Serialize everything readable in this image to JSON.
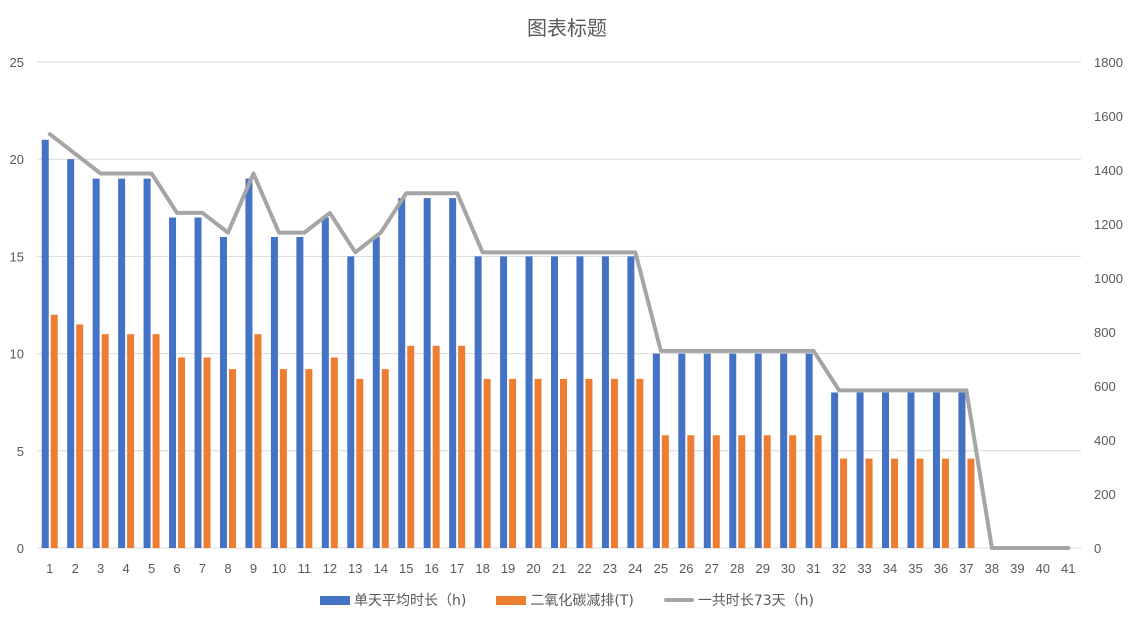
{
  "chart_data": {
    "type": "bar+line",
    "title": "图表标题",
    "categories": [
      1,
      2,
      3,
      4,
      5,
      6,
      7,
      8,
      9,
      10,
      11,
      12,
      13,
      14,
      15,
      16,
      17,
      18,
      19,
      20,
      21,
      22,
      23,
      24,
      25,
      26,
      27,
      28,
      29,
      30,
      31,
      32,
      33,
      34,
      35,
      36,
      37,
      38,
      39,
      40,
      41
    ],
    "series": [
      {
        "name": "单天平均时长（h)",
        "type": "bar",
        "axis": "left",
        "color": "#4472C4",
        "values": [
          21,
          20,
          19,
          19,
          19,
          17,
          17,
          16,
          19,
          16,
          16,
          17,
          15,
          16,
          18,
          18,
          18,
          15,
          15,
          15,
          15,
          15,
          15,
          15,
          10,
          10,
          10,
          10,
          10,
          10,
          10,
          8,
          8,
          8,
          8,
          8,
          8,
          0,
          0,
          0,
          0
        ]
      },
      {
        "name": "二氧化碳减排(T)",
        "type": "bar",
        "axis": "left",
        "color": "#ED7D31",
        "values": [
          12.0,
          11.5,
          11.0,
          11.0,
          11.0,
          9.8,
          9.8,
          9.2,
          11.0,
          9.2,
          9.2,
          9.8,
          8.7,
          9.2,
          10.4,
          10.4,
          10.4,
          8.7,
          8.7,
          8.7,
          8.7,
          8.7,
          8.7,
          8.7,
          5.8,
          5.8,
          5.8,
          5.8,
          5.8,
          5.8,
          5.8,
          4.6,
          4.6,
          4.6,
          4.6,
          4.6,
          4.6,
          0,
          0,
          0,
          0
        ]
      },
      {
        "name": "一共时长73天（h)",
        "type": "line",
        "axis": "right",
        "color": "#A5A5A5",
        "values": [
          1533,
          1460,
          1387,
          1387,
          1387,
          1241,
          1241,
          1168,
          1387,
          1168,
          1168,
          1241,
          1095,
          1168,
          1314,
          1314,
          1314,
          1095,
          1095,
          1095,
          1095,
          1095,
          1095,
          1095,
          730,
          730,
          730,
          730,
          730,
          730,
          730,
          584,
          584,
          584,
          584,
          584,
          584,
          0,
          0,
          0,
          0
        ]
      }
    ],
    "left_axis": {
      "min": 0,
      "max": 25,
      "ticks": [
        0,
        5,
        10,
        15,
        20,
        25
      ]
    },
    "right_axis": {
      "min": 0,
      "max": 1800,
      "ticks": [
        0,
        200,
        400,
        600,
        800,
        1000,
        1200,
        1400,
        1600,
        1800
      ]
    },
    "grid": true,
    "legend_position": "bottom",
    "xlabel": "",
    "ylabel": ""
  },
  "legend": {
    "items": [
      {
        "label": "单天平均时长（h)",
        "color": "#4472C4",
        "kind": "bar"
      },
      {
        "label": "二氧化碳减排(T)",
        "color": "#ED7D31",
        "kind": "bar"
      },
      {
        "label": "一共时长73天（h)",
        "color": "#A5A5A5",
        "kind": "line"
      }
    ]
  }
}
